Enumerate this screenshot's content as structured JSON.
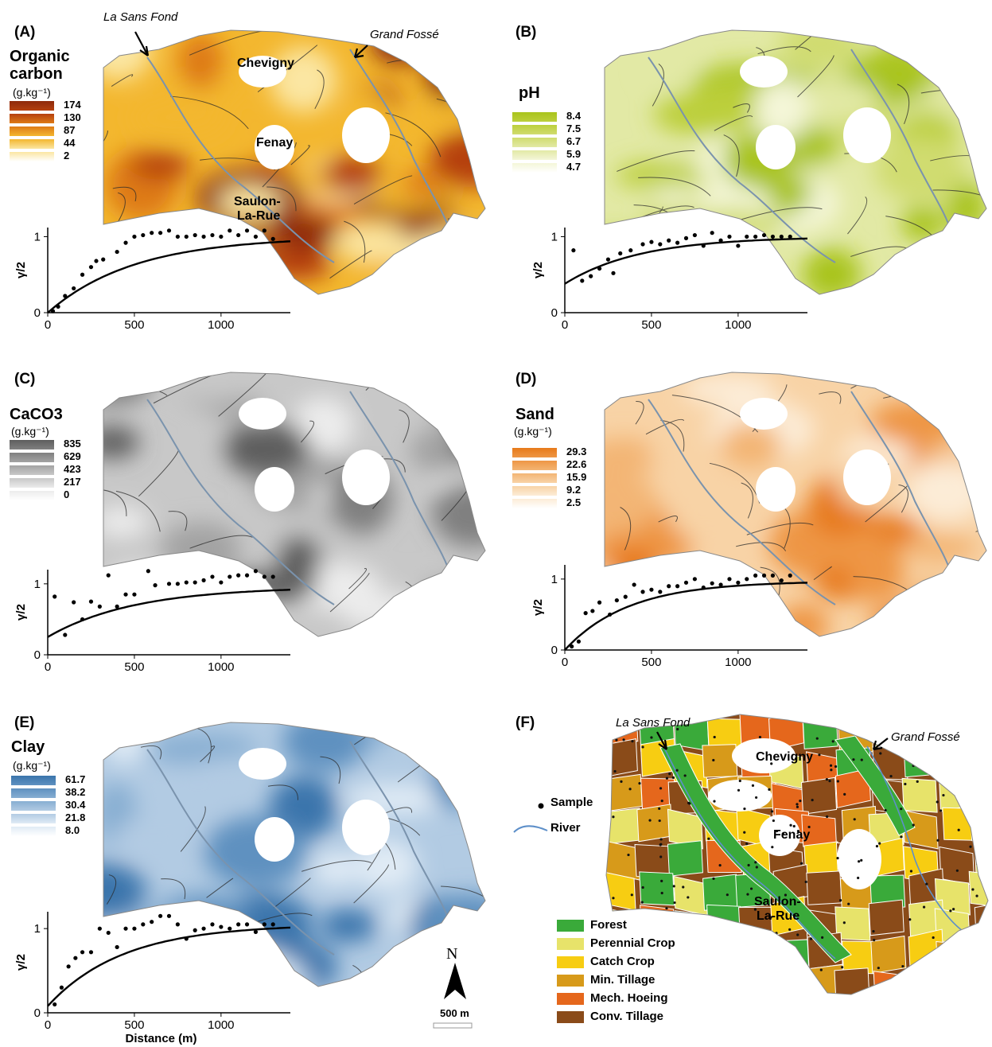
{
  "panels": [
    {
      "id": "A",
      "label": "(A)",
      "title_lines": [
        "Organic",
        "carbon"
      ],
      "unit": "(g.kg⁻¹)",
      "legend_values": [
        "174",
        "130",
        "87",
        "44",
        "2"
      ],
      "colors": [
        "#8e2a0c",
        "#b5400f",
        "#de7a16",
        "#f3b72f",
        "#fbe6a2"
      ],
      "towns": [
        "Chevigny",
        "Fenay",
        "Saulon-",
        "La-Rue"
      ],
      "rivers": [
        "La Sans Fond",
        "Grand Fossé"
      ]
    },
    {
      "id": "B",
      "label": "(B)",
      "title_lines": [
        "pH"
      ],
      "unit": "",
      "legend_values": [
        "8.4",
        "7.5",
        "6.7",
        "5.9",
        "4.7"
      ],
      "colors": [
        "#a9c41c",
        "#bccf3b",
        "#d0dc6f",
        "#e2e9a5",
        "#f4f6d8"
      ]
    },
    {
      "id": "C",
      "label": "(C)",
      "title_lines": [
        "CaCO3"
      ],
      "unit": "(g.kg⁻¹)",
      "legend_values": [
        "835",
        "629",
        "423",
        "217",
        "0"
      ],
      "colors": [
        "#5e5e5e",
        "#808080",
        "#a3a3a3",
        "#c8c8c8",
        "#ececec"
      ]
    },
    {
      "id": "D",
      "label": "(D)",
      "title_lines": [
        "Sand"
      ],
      "unit": "(g.kg⁻¹)",
      "legend_values": [
        "29.3",
        "22.6",
        "15.9",
        "9.2",
        "2.5"
      ],
      "colors": [
        "#e77a1a",
        "#ee9645",
        "#f3b574",
        "#f8d3a6",
        "#fcecd7"
      ]
    },
    {
      "id": "E",
      "label": "(E)",
      "title_lines": [
        "Clay"
      ],
      "unit": "(g.kg⁻¹)",
      "legend_values": [
        "61.7",
        "38.2",
        "30.4",
        "21.8",
        "8.0"
      ],
      "colors": [
        "#3a74ac",
        "#5f91c0",
        "#87aed2",
        "#b2cbe3",
        "#e0ebf5"
      ]
    }
  ],
  "variograms": {
    "ylabel": "γ/2",
    "xlabel": "Distance (m)",
    "x_ticks": [
      "0",
      "500",
      "1000"
    ],
    "y_ticks": [
      "0",
      "1"
    ]
  },
  "chart_data": [
    {
      "type": "scatter",
      "panel": "A",
      "xlim": [
        0,
        1400
      ],
      "ylim": [
        0,
        1.12
      ],
      "points": [
        [
          30,
          0.02
        ],
        [
          60,
          0.08
        ],
        [
          100,
          0.22
        ],
        [
          150,
          0.32
        ],
        [
          200,
          0.5
        ],
        [
          250,
          0.6
        ],
        [
          280,
          0.68
        ],
        [
          320,
          0.7
        ],
        [
          400,
          0.8
        ],
        [
          450,
          0.92
        ],
        [
          500,
          1.0
        ],
        [
          550,
          1.02
        ],
        [
          600,
          1.05
        ],
        [
          650,
          1.05
        ],
        [
          700,
          1.08
        ],
        [
          750,
          1.0
        ],
        [
          800,
          1.0
        ],
        [
          850,
          1.02
        ],
        [
          900,
          1.0
        ],
        [
          950,
          1.02
        ],
        [
          1000,
          1.0
        ],
        [
          1050,
          1.08
        ],
        [
          1100,
          1.02
        ],
        [
          1150,
          1.08
        ],
        [
          1200,
          1.0
        ],
        [
          1250,
          1.08
        ],
        [
          1300,
          0.97
        ]
      ],
      "model": {
        "nugget": 0.0,
        "sill": 1.0,
        "range": 1500
      }
    },
    {
      "type": "scatter",
      "panel": "B",
      "xlim": [
        0,
        1400
      ],
      "ylim": [
        0,
        1.12
      ],
      "points": [
        [
          50,
          0.82
        ],
        [
          100,
          0.42
        ],
        [
          150,
          0.48
        ],
        [
          200,
          0.58
        ],
        [
          250,
          0.7
        ],
        [
          280,
          0.52
        ],
        [
          320,
          0.78
        ],
        [
          380,
          0.82
        ],
        [
          450,
          0.9
        ],
        [
          500,
          0.93
        ],
        [
          550,
          0.9
        ],
        [
          600,
          0.95
        ],
        [
          650,
          0.92
        ],
        [
          700,
          0.98
        ],
        [
          750,
          1.02
        ],
        [
          800,
          0.88
        ],
        [
          850,
          1.05
        ],
        [
          900,
          0.95
        ],
        [
          950,
          1.0
        ],
        [
          1000,
          0.88
        ],
        [
          1050,
          1.0
        ],
        [
          1100,
          1.0
        ],
        [
          1150,
          1.02
        ],
        [
          1200,
          1.0
        ],
        [
          1250,
          1.0
        ],
        [
          1300,
          1.0
        ]
      ],
      "model": {
        "nugget": 0.38,
        "sill": 1.0,
        "range": 1300
      }
    },
    {
      "type": "scatter",
      "panel": "C",
      "xlim": [
        0,
        1400
      ],
      "ylim": [
        0,
        1.2
      ],
      "points": [
        [
          40,
          0.82
        ],
        [
          100,
          0.28
        ],
        [
          150,
          0.74
        ],
        [
          200,
          0.5
        ],
        [
          250,
          0.75
        ],
        [
          300,
          0.68
        ],
        [
          350,
          1.12
        ],
        [
          400,
          0.68
        ],
        [
          450,
          0.85
        ],
        [
          500,
          0.85
        ],
        [
          580,
          1.18
        ],
        [
          620,
          0.98
        ],
        [
          700,
          1.0
        ],
        [
          750,
          1.0
        ],
        [
          800,
          1.02
        ],
        [
          850,
          1.02
        ],
        [
          900,
          1.05
        ],
        [
          950,
          1.1
        ],
        [
          1000,
          1.02
        ],
        [
          1050,
          1.1
        ],
        [
          1100,
          1.12
        ],
        [
          1150,
          1.12
        ],
        [
          1200,
          1.18
        ],
        [
          1250,
          1.1
        ],
        [
          1300,
          1.1
        ]
      ],
      "model": {
        "nugget": 0.25,
        "sill": 0.96,
        "range": 1500
      }
    },
    {
      "type": "scatter",
      "panel": "D",
      "xlim": [
        0,
        1400
      ],
      "ylim": [
        0,
        1.2
      ],
      "points": [
        [
          40,
          0.05
        ],
        [
          80,
          0.12
        ],
        [
          120,
          0.52
        ],
        [
          160,
          0.55
        ],
        [
          200,
          0.67
        ],
        [
          260,
          0.5
        ],
        [
          300,
          0.7
        ],
        [
          350,
          0.75
        ],
        [
          400,
          0.92
        ],
        [
          450,
          0.82
        ],
        [
          500,
          0.85
        ],
        [
          550,
          0.82
        ],
        [
          600,
          0.9
        ],
        [
          650,
          0.9
        ],
        [
          700,
          0.95
        ],
        [
          750,
          1.0
        ],
        [
          800,
          0.88
        ],
        [
          850,
          0.94
        ],
        [
          900,
          0.92
        ],
        [
          950,
          1.0
        ],
        [
          1000,
          0.95
        ],
        [
          1050,
          1.0
        ],
        [
          1100,
          1.05
        ],
        [
          1150,
          1.05
        ],
        [
          1200,
          1.05
        ],
        [
          1250,
          0.98
        ],
        [
          1300,
          1.05
        ]
      ],
      "model": {
        "nugget": 0.0,
        "sill": 0.97,
        "range": 1100
      }
    },
    {
      "type": "scatter",
      "panel": "E",
      "xlim": [
        0,
        1400
      ],
      "ylim": [
        0,
        1.2
      ],
      "points": [
        [
          40,
          0.1
        ],
        [
          80,
          0.3
        ],
        [
          120,
          0.55
        ],
        [
          160,
          0.65
        ],
        [
          200,
          0.72
        ],
        [
          250,
          0.72
        ],
        [
          300,
          1.0
        ],
        [
          350,
          0.95
        ],
        [
          400,
          0.78
        ],
        [
          450,
          1.0
        ],
        [
          500,
          1.0
        ],
        [
          550,
          1.05
        ],
        [
          600,
          1.08
        ],
        [
          650,
          1.15
        ],
        [
          700,
          1.15
        ],
        [
          750,
          1.05
        ],
        [
          800,
          0.88
        ],
        [
          850,
          0.98
        ],
        [
          900,
          1.0
        ],
        [
          950,
          1.05
        ],
        [
          1000,
          1.02
        ],
        [
          1050,
          1.0
        ],
        [
          1100,
          1.05
        ],
        [
          1150,
          1.05
        ],
        [
          1200,
          0.96
        ],
        [
          1250,
          1.05
        ],
        [
          1300,
          1.05
        ]
      ],
      "model": {
        "nugget": 0.08,
        "sill": 1.05,
        "range": 1300
      }
    }
  ],
  "panel_f": {
    "label": "(F)",
    "sample_label": "Sample",
    "river_label": "River",
    "rivers": [
      "La Sans Fond",
      "Grand Fossé"
    ],
    "towns": [
      "Chevigny",
      "Fenay",
      "Saulon-",
      "La-Rue"
    ],
    "land_use": [
      {
        "name": "Forest",
        "color": "#3aaa3a"
      },
      {
        "name": "Perennial Crop",
        "color": "#e7e36a"
      },
      {
        "name": "Catch Crop",
        "color": "#f7cd12"
      },
      {
        "name": "Min. Tillage",
        "color": "#d79a1a"
      },
      {
        "name": "Mech. Hoeing",
        "color": "#e5671c"
      },
      {
        "name": "Conv. Tillage",
        "color": "#8a4b19"
      }
    ]
  },
  "north_label": "N",
  "scale_label": "500 m"
}
